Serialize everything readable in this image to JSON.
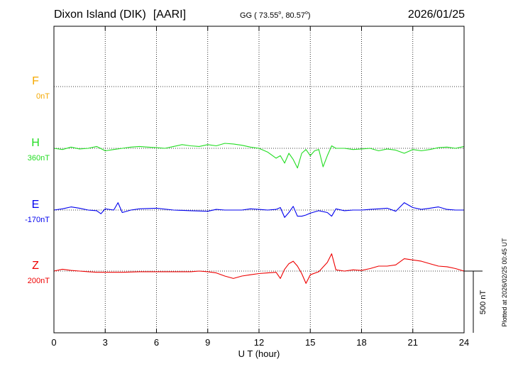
{
  "header": {
    "station": "Dixon Island (DIK)",
    "institute": "[AARI]",
    "coords_prefix": "GG ( 73.55",
    "coords_lat_sup": "o",
    "coords_mid": ",  80.57",
    "coords_lon_sup": "o",
    "coords_suffix": ")",
    "date": "2026/01/25"
  },
  "side_note": "Plotted at 2026/02/25 00:45 UT",
  "scale_bar_label": "500 nT",
  "chart_data": {
    "type": "line",
    "xlabel": "U T (hour)",
    "xlim": [
      0,
      24
    ],
    "xticks": [
      "0",
      "3",
      "6",
      "9",
      "12",
      "15",
      "18",
      "21",
      "24"
    ],
    "y_units": "nT",
    "scale_bar_nT": 500,
    "grid": true,
    "series": [
      {
        "name": "F",
        "baseline_label": "0nT",
        "color": "#f5a800",
        "values": []
      },
      {
        "name": "H",
        "baseline_label": "360nT",
        "color": "#22dd22",
        "x": [
          0,
          0.5,
          1,
          1.5,
          2,
          2.5,
          3,
          3.5,
          4,
          4.5,
          5,
          5.5,
          6,
          6.5,
          7,
          7.5,
          8,
          8.5,
          9,
          9.5,
          10,
          10.5,
          11,
          11.5,
          12,
          12.5,
          13,
          13.25,
          13.5,
          13.75,
          14,
          14.25,
          14.5,
          14.75,
          15,
          15.25,
          15.5,
          15.75,
          16,
          16.25,
          16.5,
          17,
          17.5,
          18,
          18.5,
          19,
          19.5,
          20,
          20.5,
          21,
          21.5,
          22,
          22.5,
          23,
          23.5,
          24
        ],
        "values": [
          0,
          -10,
          10,
          -5,
          0,
          15,
          -20,
          -10,
          0,
          10,
          15,
          10,
          5,
          0,
          15,
          30,
          20,
          15,
          30,
          20,
          40,
          35,
          25,
          10,
          0,
          -30,
          -80,
          -60,
          -120,
          -40,
          -90,
          -160,
          -40,
          -10,
          -60,
          -20,
          -10,
          -150,
          -60,
          20,
          0,
          0,
          -10,
          -5,
          0,
          -20,
          -5,
          -15,
          -40,
          -10,
          -20,
          -10,
          5,
          10,
          0,
          15
        ]
      },
      {
        "name": "E",
        "baseline_label": "-170nT",
        "color": "#0000ee",
        "x": [
          0,
          0.5,
          1,
          1.5,
          2,
          2.5,
          2.75,
          3,
          3.5,
          3.75,
          4,
          4.5,
          5,
          6,
          7,
          8,
          9,
          9.5,
          10,
          11,
          11.5,
          12,
          12.5,
          13,
          13.25,
          13.5,
          13.75,
          14,
          14.25,
          14.5,
          14.75,
          15,
          15.5,
          16,
          16.25,
          16.5,
          17,
          17.5,
          18,
          18.5,
          19,
          19.5,
          20,
          20.5,
          21,
          21.5,
          22,
          22.5,
          23,
          23.5,
          24
        ],
        "values": [
          0,
          10,
          25,
          15,
          0,
          -5,
          -30,
          10,
          0,
          60,
          -20,
          0,
          10,
          15,
          0,
          -5,
          -10,
          5,
          0,
          0,
          10,
          5,
          0,
          5,
          20,
          -60,
          -20,
          30,
          -50,
          -50,
          -40,
          -25,
          -5,
          -20,
          -50,
          10,
          -5,
          0,
          0,
          5,
          10,
          15,
          -10,
          60,
          20,
          5,
          15,
          25,
          5,
          0,
          0
        ]
      },
      {
        "name": "Z",
        "baseline_label": "200nT",
        "color": "#ee0000",
        "x": [
          0,
          0.5,
          1,
          1.5,
          2,
          2.5,
          3,
          4,
          5,
          6,
          7,
          8,
          8.5,
          9,
          9.5,
          10,
          10.5,
          11,
          11.5,
          12,
          12.5,
          13,
          13.25,
          13.5,
          13.75,
          14,
          14.25,
          14.5,
          14.75,
          15,
          15.5,
          16,
          16.25,
          16.5,
          17,
          17.5,
          18,
          18.5,
          19,
          19.5,
          20,
          20.5,
          21,
          21.5,
          22,
          22.5,
          23,
          23.5,
          24
        ],
        "values": [
          0,
          15,
          5,
          0,
          -5,
          -10,
          -10,
          -10,
          -5,
          -5,
          -5,
          -5,
          0,
          -5,
          -15,
          -40,
          -60,
          -40,
          -30,
          -20,
          -15,
          -10,
          -60,
          15,
          60,
          80,
          40,
          -20,
          -100,
          -30,
          -5,
          70,
          140,
          10,
          0,
          10,
          5,
          20,
          40,
          40,
          50,
          100,
          90,
          80,
          60,
          40,
          35,
          20,
          0
        ]
      }
    ]
  }
}
